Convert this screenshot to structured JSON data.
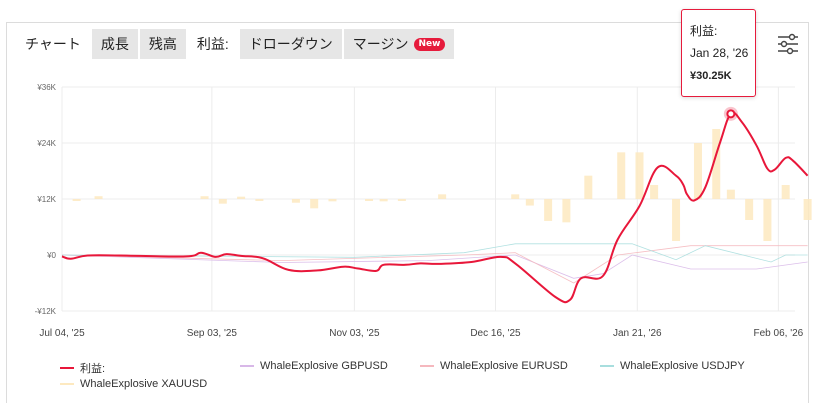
{
  "tabs": [
    {
      "label": "チャート",
      "active": false
    },
    {
      "label": "成長",
      "active": false
    },
    {
      "label": "残高",
      "active": false
    },
    {
      "label": "利益:",
      "active": true
    },
    {
      "label": "ドローダウン",
      "active": false
    },
    {
      "label": "マージン",
      "active": false,
      "badge": "New"
    }
  ],
  "settings_icon": "sliders-icon",
  "tooltip": {
    "title": "利益:",
    "date": "Jan 28, '26",
    "value": "¥30.25K"
  },
  "legend": [
    {
      "label": "利益:",
      "color": "#e8173a"
    },
    {
      "label": "WhaleExplosive GBPUSD",
      "color": "#d8b8e8"
    },
    {
      "label": "WhaleExplosive EURUSD",
      "color": "#f5b8be"
    },
    {
      "label": "WhaleExplosive USDJPY",
      "color": "#a8dede"
    },
    {
      "label": "WhaleExplosive XAUUSD",
      "color": "#fde9c0"
    }
  ],
  "chart_data": {
    "type": "line",
    "ylim": [
      -12000,
      36000
    ],
    "y_ticks": [
      36000,
      24000,
      12000,
      0,
      -12000
    ],
    "y_tick_labels": [
      "¥36K",
      "¥24K",
      "¥12K",
      "¥0",
      "-¥12K"
    ],
    "x_tick_labels": [
      "Jul 04, '25",
      "Sep 03, '25",
      "Nov 03, '25",
      "Dec 16, '25",
      "Jan 21, '26",
      "Feb 06, '26"
    ],
    "grid": true,
    "series": [
      {
        "name": "利益:",
        "color": "#e8173a",
        "values": [
          [
            0,
            -300
          ],
          [
            0.012,
            -800
          ],
          [
            0.035,
            -100
          ],
          [
            0.08,
            -100
          ],
          [
            0.17,
            -300
          ],
          [
            0.19,
            500
          ],
          [
            0.21,
            -400
          ],
          [
            0.225,
            200
          ],
          [
            0.245,
            -200
          ],
          [
            0.275,
            -700
          ],
          [
            0.31,
            -3200
          ],
          [
            0.35,
            -3300
          ],
          [
            0.385,
            -2500
          ],
          [
            0.405,
            -2900
          ],
          [
            0.43,
            -3400
          ],
          [
            0.44,
            -2100
          ],
          [
            0.47,
            -2100
          ],
          [
            0.49,
            -1800
          ],
          [
            0.515,
            -1900
          ],
          [
            0.56,
            -1500
          ],
          [
            0.6,
            -400
          ],
          [
            0.62,
            -1800
          ],
          [
            0.675,
            -9000
          ],
          [
            0.695,
            -9600
          ],
          [
            0.71,
            -5000
          ],
          [
            0.74,
            -4500
          ],
          [
            0.76,
            3300
          ],
          [
            0.79,
            10500
          ],
          [
            0.815,
            18800
          ],
          [
            0.84,
            17000
          ],
          [
            0.85,
            15000
          ],
          [
            0.855,
            13000
          ],
          [
            0.865,
            11700
          ],
          [
            0.88,
            14500
          ],
          [
            0.9,
            24000
          ],
          [
            0.915,
            30250
          ],
          [
            0.93,
            28500
          ],
          [
            0.95,
            23500
          ],
          [
            0.965,
            18500
          ],
          [
            0.975,
            18300
          ],
          [
            0.99,
            20800
          ],
          [
            1.0,
            20200
          ],
          [
            1.02,
            17000
          ]
        ]
      }
    ]
  }
}
